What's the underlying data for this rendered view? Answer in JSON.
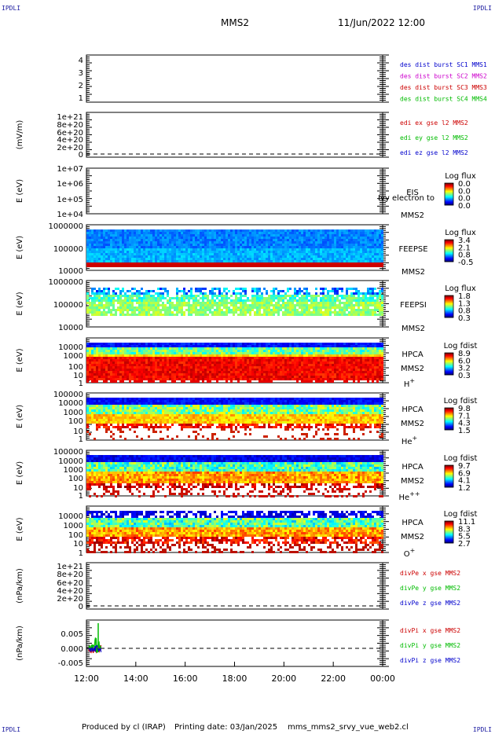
{
  "header": {
    "spacecraft": "MMS2",
    "datetime": "11/Jun/2022 12:00",
    "corner_label": "IPDLI"
  },
  "footer": {
    "producer": "Produced by cl (IRAP)",
    "printing": "Printing date: 03/Jan/2025",
    "file": "mms_mms2_srvy_vue_web2.cl"
  },
  "x_axis": {
    "ticks": [
      "12:00",
      "14:00",
      "16:00",
      "18:00",
      "20:00",
      "22:00",
      "00:00"
    ]
  },
  "chart_data": [
    {
      "type": "line",
      "id": "desdist",
      "yticks": [
        "1",
        "2",
        "3",
        "4"
      ],
      "ylabel": "",
      "legend": [
        {
          "text": "des dist burst SC1 MMS1",
          "color": "#0000cc"
        },
        {
          "text": "des dist burst SC2 MMS2",
          "color": "#cc00cc"
        },
        {
          "text": "des dist burst SC3 MMS3",
          "color": "#cc0000"
        },
        {
          "text": "des dist burst SC4 MMS4",
          "color": "#00bb00"
        }
      ]
    },
    {
      "type": "line",
      "id": "edi",
      "yticks": [
        "0",
        "2e+20",
        "4e+20",
        "6e+20",
        "8e+20",
        "1e+21"
      ],
      "ylabel": "(mV/m)",
      "legend": [
        {
          "text": "edi ex gse l2 MMS2",
          "color": "#cc0000"
        },
        {
          "text": "edi ey gse l2 MMS2",
          "color": "#00bb00"
        },
        {
          "text": "edi ez gse l2 MMS2",
          "color": "#0000cc"
        }
      ]
    },
    {
      "type": "heatmap",
      "id": "eis",
      "yticks": [
        "1e+04",
        "1e+05",
        "1e+06",
        "1e+07"
      ],
      "ylabel": "E (eV)",
      "labels": [
        "EIS",
        "MMS2"
      ],
      "overlay": "Ivy electron to",
      "colorbar": {
        "title": "Log flux",
        "ticks": [
          "0.0",
          "0.0",
          "0.0",
          "0.0"
        ]
      }
    },
    {
      "type": "heatmap",
      "id": "feepse",
      "yticks": [
        "10000",
        "100000",
        "1000000"
      ],
      "ylabel": "E (eV)",
      "labels": [
        "FEEPSE",
        "MMS2"
      ],
      "colorbar": {
        "title": "Log flux",
        "ticks": [
          "3.4",
          "2.1",
          "0.8",
          "-0.5"
        ]
      }
    },
    {
      "type": "heatmap",
      "id": "feepsi",
      "yticks": [
        "10000",
        "100000",
        "1000000"
      ],
      "ylabel": "E (eV)",
      "labels": [
        "FEEPSI",
        "MMS2"
      ],
      "colorbar": {
        "title": "Log flux",
        "ticks": [
          "1.8",
          "1.3",
          "0.8",
          "0.3"
        ]
      }
    },
    {
      "type": "heatmap",
      "id": "hpca_h",
      "yticks": [
        "1",
        "10",
        "100",
        "1000",
        "10000"
      ],
      "ylabel": "E (eV)",
      "labels": [
        "HPCA",
        "MMS2"
      ],
      "species": "H",
      "species_sup": "+",
      "colorbar": {
        "title": "Log fdist",
        "ticks": [
          "8.9",
          "6.0",
          "3.2",
          "0.3"
        ]
      }
    },
    {
      "type": "heatmap",
      "id": "hpca_he",
      "yticks": [
        "1",
        "10",
        "100",
        "1000",
        "10000",
        "100000"
      ],
      "ylabel": "E (eV)",
      "labels": [
        "HPCA",
        "MMS2"
      ],
      "species": "He",
      "species_sup": "+",
      "colorbar": {
        "title": "Log fdist",
        "ticks": [
          "9.8",
          "7.1",
          "4.3",
          "1.5"
        ]
      }
    },
    {
      "type": "heatmap",
      "id": "hpca_hepp",
      "yticks": [
        "1",
        "10",
        "100",
        "1000",
        "10000",
        "100000"
      ],
      "ylabel": "E (eV)",
      "labels": [
        "HPCA",
        "MMS2"
      ],
      "species": "He",
      "species_sup": "++",
      "colorbar": {
        "title": "Log fdist",
        "ticks": [
          "9.7",
          "6.9",
          "4.1",
          "1.2"
        ]
      }
    },
    {
      "type": "heatmap",
      "id": "hpca_o",
      "yticks": [
        "1",
        "10",
        "100",
        "1000",
        "10000"
      ],
      "ylabel": "E (eV)",
      "labels": [
        "HPCA",
        "MMS2"
      ],
      "species": "O",
      "species_sup": "+",
      "colorbar": {
        "title": "Log fdist",
        "ticks": [
          "11.1",
          "8.3",
          "5.5",
          "2.7"
        ]
      }
    },
    {
      "type": "line",
      "id": "divpe",
      "yticks": [
        "0",
        "2e+20",
        "4e+20",
        "6e+20",
        "8e+20",
        "1e+21"
      ],
      "ylabel": "(nPa/km)",
      "legend": [
        {
          "text": "divPe x gse MMS2",
          "color": "#cc0000"
        },
        {
          "text": "divPe y gse MMS2",
          "color": "#00bb00"
        },
        {
          "text": "divPe z gse MMS2",
          "color": "#0000cc"
        }
      ]
    },
    {
      "type": "line",
      "id": "divpi",
      "yticks": [
        "-0.005",
        "0.000",
        "0.005"
      ],
      "ylabel": "(nPa/km)",
      "legend": [
        {
          "text": "divPi x gse MMS2",
          "color": "#cc0000"
        },
        {
          "text": "divPi y gse MMS2",
          "color": "#00bb00"
        },
        {
          "text": "divPi z gse MMS2",
          "color": "#0000cc"
        }
      ]
    }
  ]
}
